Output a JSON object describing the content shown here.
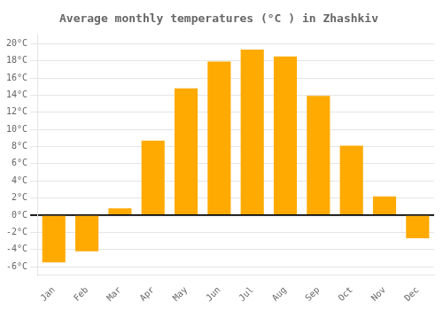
{
  "chart_data": {
    "type": "bar",
    "title": "Average monthly temperatures (°C ) in Zhashkiv",
    "categories": [
      "Jan",
      "Feb",
      "Mar",
      "Apr",
      "May",
      "Jun",
      "Jul",
      "Aug",
      "Sep",
      "Oct",
      "Nov",
      "Dec"
    ],
    "values": [
      -5.5,
      -4.2,
      0.8,
      8.7,
      14.8,
      17.9,
      19.3,
      18.5,
      13.9,
      8.1,
      2.2,
      -2.7
    ],
    "color": "#FFAA00",
    "ylim": [
      -7,
      21
    ],
    "yticks": [
      {
        "value": -6,
        "label": "-6°C"
      },
      {
        "value": -4,
        "label": "-4°C"
      },
      {
        "value": -2,
        "label": "-2°C"
      },
      {
        "value": 0,
        "label": "0°C"
      },
      {
        "value": 2,
        "label": "2°C"
      },
      {
        "value": 4,
        "label": "4°C"
      },
      {
        "value": 6,
        "label": "6°C"
      },
      {
        "value": 8,
        "label": "8°C"
      },
      {
        "value": 10,
        "label": "10°C"
      },
      {
        "value": 12,
        "label": "12°C"
      },
      {
        "value": 14,
        "label": "14°C"
      },
      {
        "value": 16,
        "label": "16°C"
      },
      {
        "value": 18,
        "label": "18°C"
      },
      {
        "value": 20,
        "label": "20°C"
      }
    ],
    "grid": true
  }
}
